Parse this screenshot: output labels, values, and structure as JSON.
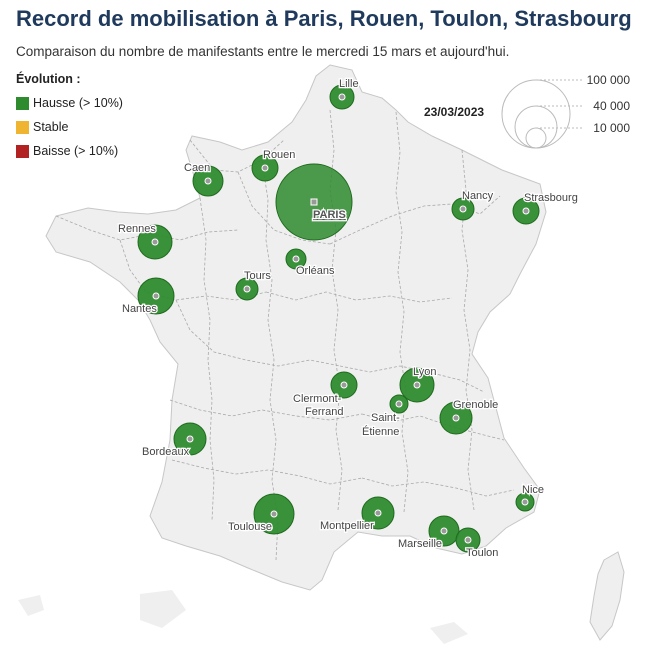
{
  "title": "Record de mobilisation à Paris, Rouen, Toulon, Strasbourg",
  "subtitle": "Comparaison du nombre de manifestants entre le mercredi 15 mars et aujourd'hui.",
  "legend": {
    "title": "Évolution :",
    "items": [
      {
        "label": "Hausse (> 10%)",
        "color": "#2e8b2e"
      },
      {
        "label": "Stable",
        "color": "#f0b530"
      },
      {
        "label": "Baisse (> 10%)",
        "color": "#b22222"
      }
    ]
  },
  "date": "23/03/2023",
  "size_legend": [
    {
      "label": "100 000",
      "value": 100000
    },
    {
      "label": "40 000",
      "value": 40000
    },
    {
      "label": "10 000",
      "value": 10000
    }
  ],
  "colors": {
    "hausse": "#2e8b2e",
    "hausse_stroke": "#1f6b1f",
    "land": "#efefef",
    "borders": "#aaaaaa",
    "title": "#1f3a5c"
  },
  "cities": [
    {
      "name": "Lille",
      "evolution": "hausse"
    },
    {
      "name": "Caen",
      "evolution": "hausse"
    },
    {
      "name": "Rouen",
      "evolution": "hausse"
    },
    {
      "name": "PARIS",
      "evolution": "hausse"
    },
    {
      "name": "Nancy",
      "evolution": "hausse"
    },
    {
      "name": "Strasbourg",
      "evolution": "hausse"
    },
    {
      "name": "Rennes",
      "evolution": "hausse"
    },
    {
      "name": "Orléans",
      "evolution": "hausse"
    },
    {
      "name": "Tours",
      "evolution": "hausse"
    },
    {
      "name": "Nantes",
      "evolution": "hausse"
    },
    {
      "name": "Lyon",
      "evolution": "hausse"
    },
    {
      "name": "Clermont-Ferrand",
      "line1": "Clermont-",
      "line2": "Ferrand",
      "evolution": "hausse"
    },
    {
      "name": "Saint-Étienne",
      "line1": "Saint-",
      "line2": "Étienne",
      "evolution": "hausse"
    },
    {
      "name": "Grenoble",
      "evolution": "hausse"
    },
    {
      "name": "Bordeaux",
      "evolution": "hausse"
    },
    {
      "name": "Nice",
      "evolution": "hausse"
    },
    {
      "name": "Toulouse",
      "evolution": "hausse"
    },
    {
      "name": "Montpellier",
      "evolution": "hausse"
    },
    {
      "name": "Marseille",
      "evolution": "hausse"
    },
    {
      "name": "Toulon",
      "evolution": "hausse"
    }
  ]
}
